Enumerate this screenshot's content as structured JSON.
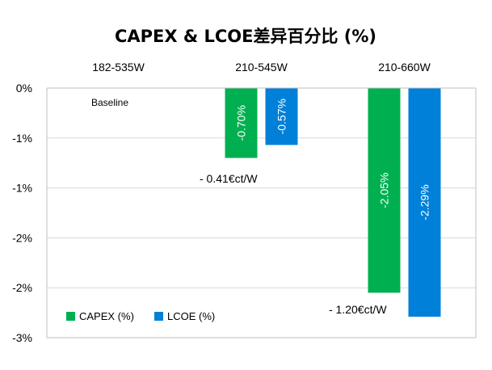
{
  "chart_data": {
    "type": "bar",
    "title": "CAPEX & LCOE差异百分比 (%)",
    "categories": [
      "182-535W",
      "210-545W",
      "210-660W"
    ],
    "series": [
      {
        "name": "CAPEX (%)",
        "color": "#00b050",
        "values": [
          0,
          -0.7,
          -2.05
        ],
        "labels": [
          "",
          "-0.70%",
          "-2.05%"
        ]
      },
      {
        "name": "LCOE (%)",
        "color": "#0080d8",
        "values": [
          0,
          -0.57,
          -2.29
        ],
        "labels": [
          "",
          "-0.57%",
          "-2.29%"
        ]
      }
    ],
    "ylim": [
      -2.5,
      0
    ],
    "yticks": [
      0,
      -0.5,
      -1,
      -1.5,
      -2,
      -2.5
    ],
    "ytick_labels": [
      "0%",
      "-1%",
      "-1%",
      "-2%",
      "-2%",
      "-3%"
    ],
    "annotations": [
      "Baseline",
      "- 0.41€ct/W",
      "- 1.20€ct/W"
    ],
    "grid": true,
    "legend": "bottom-left"
  }
}
